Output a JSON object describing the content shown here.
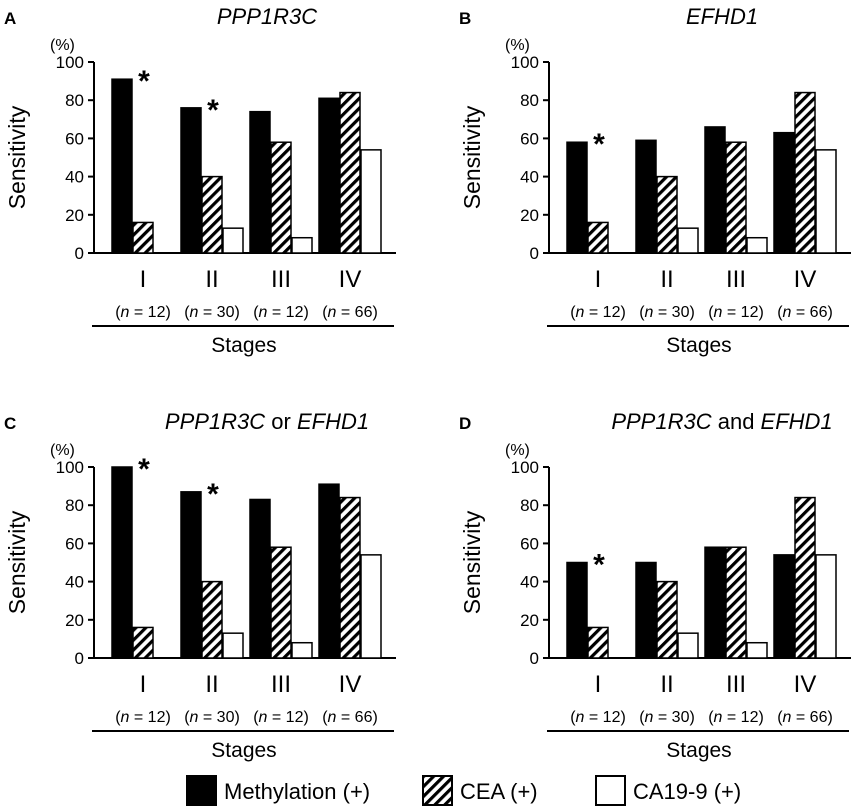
{
  "chart_data": [
    {
      "type": "bar",
      "panel_label": "A",
      "title": "PPP1R3C",
      "title_parts": [
        {
          "text": "PPP1R3C",
          "italic": true
        }
      ],
      "ylabel": "Sensitivity",
      "yunit": "(%)",
      "ylim": [
        0,
        100
      ],
      "yticks": [
        0,
        20,
        40,
        60,
        80,
        100
      ],
      "xlabel": "Stages",
      "categories": [
        "I",
        "II",
        "III",
        "IV"
      ],
      "n_labels": [
        "= 12)",
        "= 30)",
        "= 12)",
        "= 66)"
      ],
      "series": [
        {
          "name": "Methylation (+)",
          "values": [
            91,
            76,
            74,
            81
          ]
        },
        {
          "name": "CEA (+)",
          "values": [
            16,
            40,
            58,
            84
          ]
        },
        {
          "name": "CA19-9 (+)",
          "values": [
            0,
            13,
            8,
            54
          ]
        }
      ],
      "significance": [
        "*",
        "*",
        "",
        ""
      ]
    },
    {
      "type": "bar",
      "panel_label": "B",
      "title": "EFHD1",
      "title_parts": [
        {
          "text": "EFHD1",
          "italic": true
        }
      ],
      "ylabel": "Sensitivity",
      "yunit": "(%)",
      "ylim": [
        0,
        100
      ],
      "yticks": [
        0,
        20,
        40,
        60,
        80,
        100
      ],
      "xlabel": "Stages",
      "categories": [
        "I",
        "II",
        "III",
        "IV"
      ],
      "n_labels": [
        "= 12)",
        "= 30)",
        "= 12)",
        "= 66)"
      ],
      "series": [
        {
          "name": "Methylation (+)",
          "values": [
            58,
            59,
            66,
            63
          ]
        },
        {
          "name": "CEA (+)",
          "values": [
            16,
            40,
            58,
            84
          ]
        },
        {
          "name": "CA19-9 (+)",
          "values": [
            0,
            13,
            8,
            54
          ]
        }
      ],
      "significance": [
        "*",
        "",
        "",
        ""
      ]
    },
    {
      "type": "bar",
      "panel_label": "C",
      "title": "PPP1R3C or EFHD1",
      "title_parts": [
        {
          "text": "PPP1R3C",
          "italic": true
        },
        {
          "text": " or ",
          "italic": false
        },
        {
          "text": "EFHD1",
          "italic": true
        }
      ],
      "ylabel": "Sensitivity",
      "yunit": "(%)",
      "ylim": [
        0,
        100
      ],
      "yticks": [
        0,
        20,
        40,
        60,
        80,
        100
      ],
      "xlabel": "Stages",
      "categories": [
        "I",
        "II",
        "III",
        "IV"
      ],
      "n_labels": [
        "= 12)",
        "= 30)",
        "= 12)",
        "= 66)"
      ],
      "series": [
        {
          "name": "Methylation (+)",
          "values": [
            100,
            87,
            83,
            91
          ]
        },
        {
          "name": "CEA (+)",
          "values": [
            16,
            40,
            58,
            84
          ]
        },
        {
          "name": "CA19-9 (+)",
          "values": [
            0,
            13,
            8,
            54
          ]
        }
      ],
      "significance": [
        "*",
        "*",
        "",
        ""
      ]
    },
    {
      "type": "bar",
      "panel_label": "D",
      "title": "PPP1R3C and EFHD1",
      "title_parts": [
        {
          "text": "PPP1R3C",
          "italic": true
        },
        {
          "text": " and ",
          "italic": false
        },
        {
          "text": "EFHD1",
          "italic": true
        }
      ],
      "ylabel": "Sensitivity",
      "yunit": "(%)",
      "ylim": [
        0,
        100
      ],
      "yticks": [
        0,
        20,
        40,
        60,
        80,
        100
      ],
      "xlabel": "Stages",
      "categories": [
        "I",
        "II",
        "III",
        "IV"
      ],
      "n_labels": [
        "= 12)",
        "= 30)",
        "= 12)",
        "= 66)"
      ],
      "series": [
        {
          "name": "Methylation (+)",
          "values": [
            50,
            50,
            58,
            54
          ]
        },
        {
          "name": "CEA (+)",
          "values": [
            16,
            40,
            58,
            84
          ]
        },
        {
          "name": "CA19-9 (+)",
          "values": [
            0,
            13,
            8,
            54
          ]
        }
      ],
      "significance": [
        "*",
        "",
        "",
        ""
      ]
    }
  ],
  "legend": {
    "position": "bottom",
    "items": [
      {
        "label": "Methylation (+)",
        "fill": "solid-black"
      },
      {
        "label": "CEA (+)",
        "fill": "diagonal-hatch"
      },
      {
        "label": "CA19-9 (+)",
        "fill": "white"
      }
    ]
  },
  "colors": {
    "ink": "#000000",
    "background": "#ffffff"
  }
}
